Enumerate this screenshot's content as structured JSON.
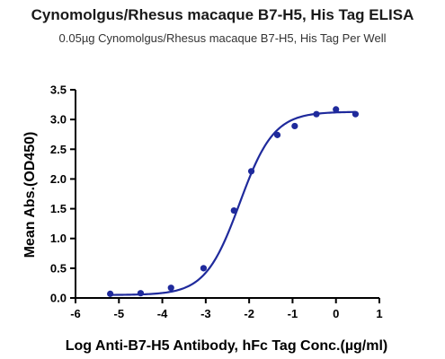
{
  "chart_data": {
    "type": "scatter",
    "title": "Cynomolgus/Rhesus macaque B7-H5, His Tag ELISA",
    "subtitle": "0.05µg Cynomolgus/Rhesus macaque B7-H5, His Tag Per Well",
    "xlabel": "Log Anti-B7-H5 Antibody, hFc Tag Conc.(µg/ml)",
    "ylabel": "Mean Abs.(OD450)",
    "xlim": [
      -6,
      1
    ],
    "ylim": [
      0,
      3.5
    ],
    "xticks": [
      -6,
      -5,
      -4,
      -3,
      -2,
      -1,
      0,
      1
    ],
    "xtick_labels": [
      "-6",
      "-5",
      "-4",
      "-3",
      "-2",
      "-1",
      "0",
      "1"
    ],
    "yticks": [
      0,
      0.5,
      1,
      1.5,
      2,
      2.5,
      3,
      3.5
    ],
    "ytick_labels": [
      "0.0",
      "0.5",
      "1.0",
      "1.5",
      "2.0",
      "2.5",
      "3.0",
      "3.5"
    ],
    "grid": false,
    "series": [
      {
        "x": [
          -5.2,
          -4.5,
          -3.8,
          -3.05,
          -2.35,
          -1.95,
          -1.35,
          -0.95,
          -0.45,
          0.0,
          0.45
        ],
        "y": [
          0.07,
          0.08,
          0.17,
          0.5,
          1.47,
          2.13,
          2.74,
          2.89,
          3.09,
          3.17,
          3.09
        ],
        "color": "#1f2a9c",
        "fit": {
          "model": "4PL",
          "bottom": 0.05,
          "top": 3.13,
          "logEC50": -2.22,
          "hill": 1.1,
          "x_range": [
            -5.2,
            0.45
          ]
        }
      }
    ]
  }
}
